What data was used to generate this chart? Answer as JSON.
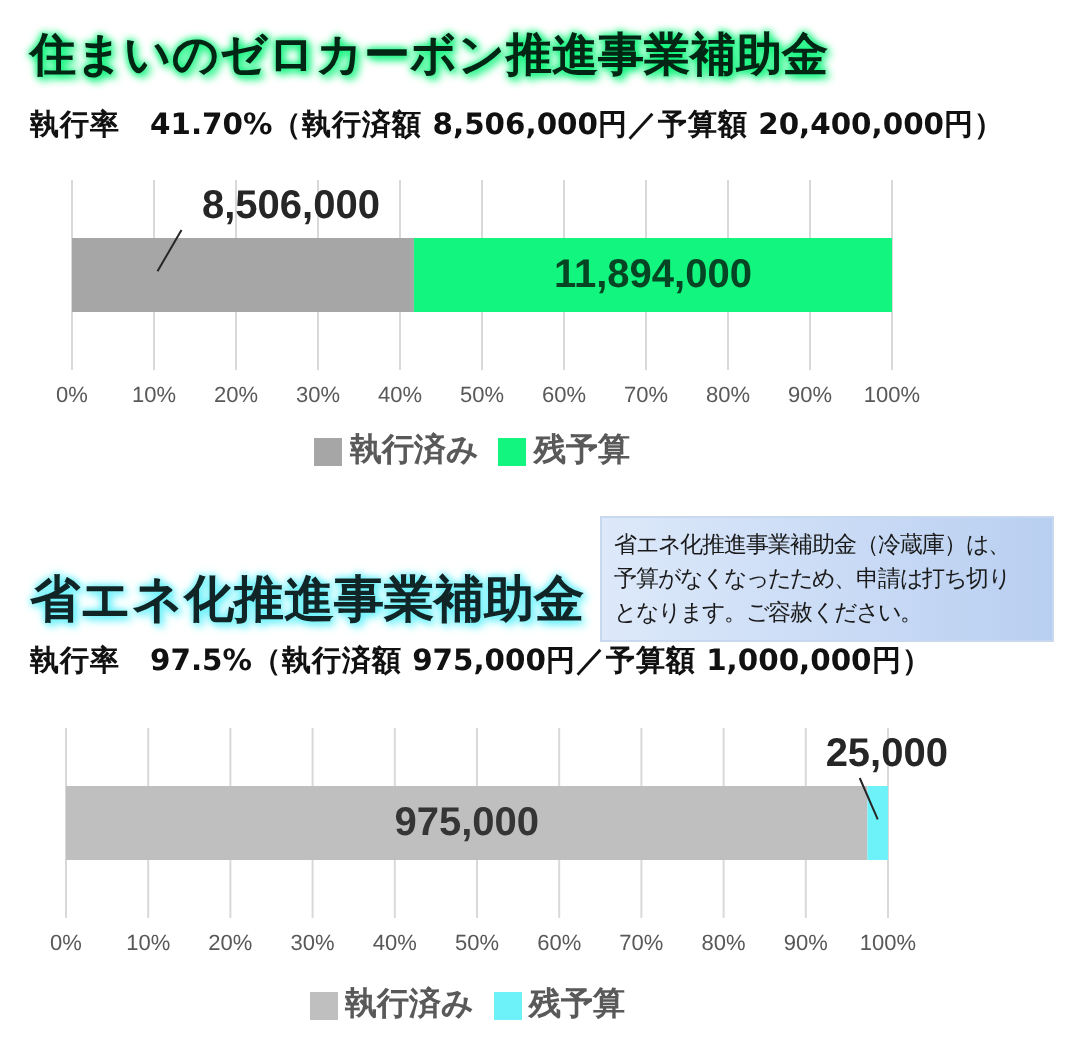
{
  "chart_data": [
    {
      "type": "bar",
      "orientation": "horizontal",
      "stacked": true,
      "title": "住まいのゼロカーボン推進事業補助金",
      "subtitle": "執行率　41.70%（執行済額 8,506,000円／予算額 20,400,000円）",
      "annotations": [
        "8,506,000",
        "11,894,000"
      ],
      "categories": [
        null
      ],
      "series": [
        {
          "name": "執行済み",
          "color": "#a6a6a6",
          "values": [
            41.7
          ]
        },
        {
          "name": "残予算",
          "color": "#12f57e",
          "values": [
            58.3
          ]
        }
      ],
      "xlim": [
        0,
        100
      ],
      "xticks": [
        {
          "value": 0,
          "label": "0%"
        },
        {
          "value": 10,
          "label": "10%"
        },
        {
          "value": 20,
          "label": "20%"
        },
        {
          "value": 30,
          "label": "30%"
        },
        {
          "value": 40,
          "label": "40%"
        },
        {
          "value": 50,
          "label": "50%"
        },
        {
          "value": 60,
          "label": "60%"
        },
        {
          "value": 70,
          "label": "70%"
        },
        {
          "value": 80,
          "label": "80%"
        },
        {
          "value": 90,
          "label": "90%"
        },
        {
          "value": 100,
          "label": "100%"
        }
      ],
      "grid": "x",
      "legend": "bottom",
      "tick_labels": "x"
    },
    {
      "type": "bar",
      "orientation": "horizontal",
      "stacked": true,
      "title": "省エネ化推進事業補助金",
      "subtitle": "執行率　97.5%（執行済額 975,000円／予算額 1,000,000円）",
      "annotations": [
        "省エネ化推進事業補助金（冷蔵庫）は、予算がなくなったため、申請は打ち切りとなります。ご容赦ください。",
        "975,000",
        "25,000"
      ],
      "categories": [
        null
      ],
      "series": [
        {
          "name": "執行済み",
          "color": "#bfbfbf",
          "values": [
            97.5
          ]
        },
        {
          "name": "残予算",
          "color": "#6ef2fa",
          "values": [
            2.5
          ]
        }
      ],
      "xlim": [
        0,
        100
      ],
      "xticks": [
        {
          "value": 0,
          "label": "0%"
        },
        {
          "value": 10,
          "label": "10%"
        },
        {
          "value": 20,
          "label": "20%"
        },
        {
          "value": 30,
          "label": "30%"
        },
        {
          "value": 40,
          "label": "40%"
        },
        {
          "value": 50,
          "label": "50%"
        },
        {
          "value": 60,
          "label": "60%"
        },
        {
          "value": 70,
          "label": "70%"
        },
        {
          "value": 80,
          "label": "80%"
        },
        {
          "value": 90,
          "label": "90%"
        },
        {
          "value": 100,
          "label": "100%"
        }
      ],
      "grid": "x",
      "legend": "bottom",
      "tick_labels": "x"
    }
  ]
}
